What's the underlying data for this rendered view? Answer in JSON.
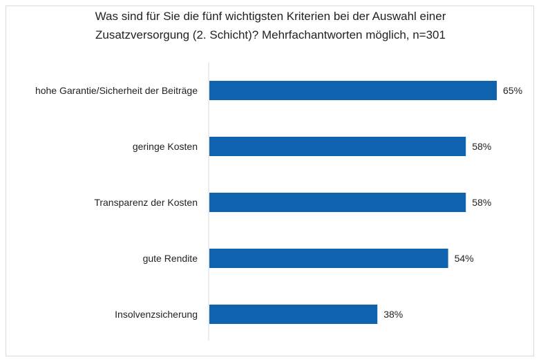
{
  "chart_data": {
    "type": "bar",
    "orientation": "horizontal",
    "title_lines": [
      "Was sind für Sie die fünf wichtigsten Kriterien bei der Auswahl einer",
      "Zusatzversorgung (2. Schicht)? Mehrfachantworten möglich, n=301"
    ],
    "categories": [
      "hohe Garantie/Sicherheit der Beiträge",
      "geringe Kosten",
      "Transparenz der Kosten",
      "gute Rendite",
      "Insolvenzsicherung"
    ],
    "values": [
      65,
      58,
      58,
      54,
      38
    ],
    "value_labels": [
      "65%",
      "58%",
      "58%",
      "54%",
      "38%"
    ],
    "xlim": [
      0,
      100
    ],
    "unit": "%",
    "grid": false,
    "bar_color": "#0e62ae",
    "axis_color": "#d9d9d9"
  }
}
